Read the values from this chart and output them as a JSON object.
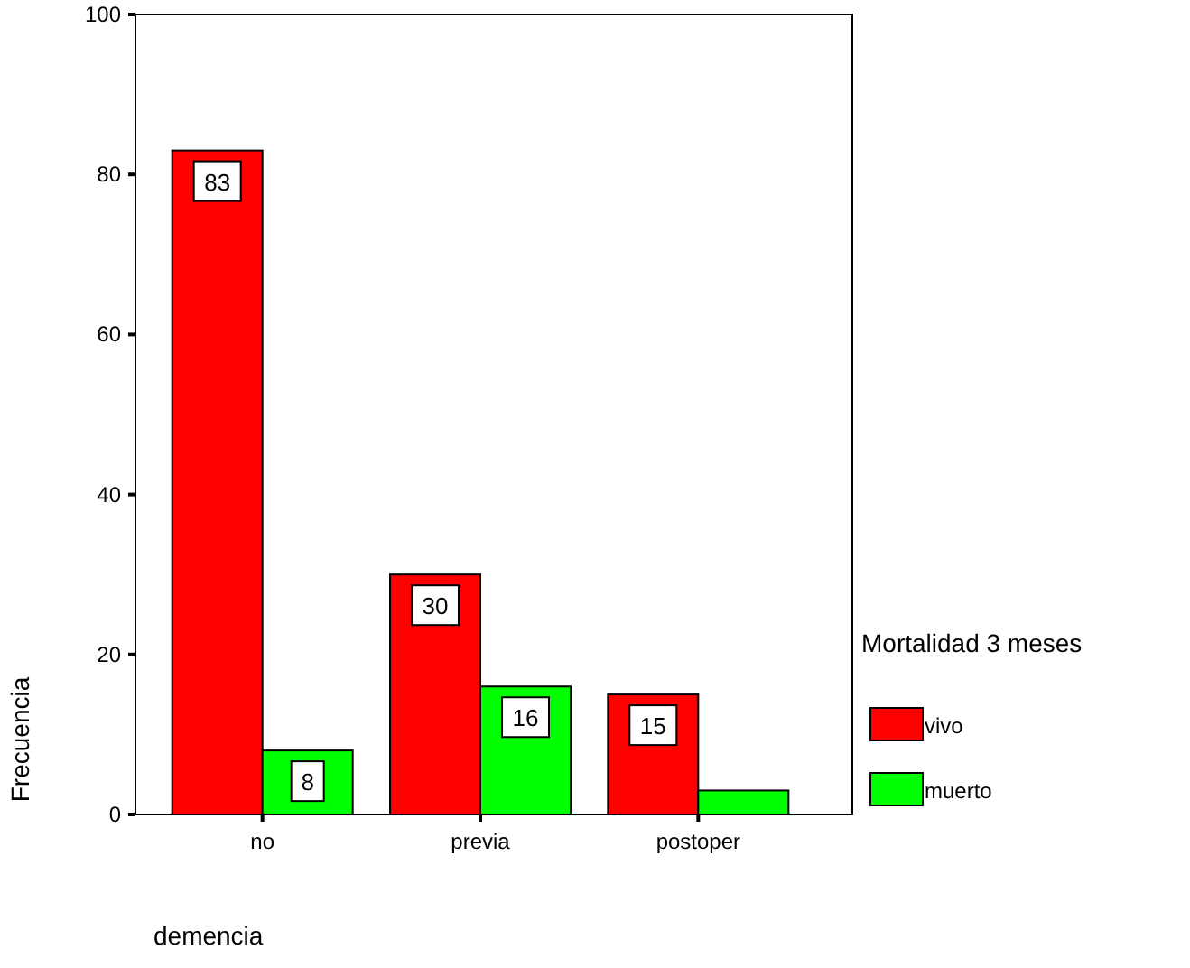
{
  "chart_data": {
    "type": "bar",
    "xlabel": "demencia",
    "ylabel": "Frecuencia",
    "legend_title": "Mortalidad 3 meses",
    "legend": "right",
    "categories": [
      "no",
      "previa",
      "postoper"
    ],
    "series": [
      {
        "name": "vivo",
        "color": "#ff0000",
        "values": [
          83,
          30,
          15
        ],
        "value_labels": [
          "83",
          "30",
          "15"
        ]
      },
      {
        "name": "muerto",
        "color": "#00ff00",
        "values": [
          8,
          16,
          3
        ],
        "value_labels": [
          "8",
          "16",
          null
        ]
      }
    ],
    "ylim": [
      0,
      100
    ],
    "yticks": [
      0,
      20,
      40,
      60,
      80,
      100
    ],
    "grid": false
  }
}
